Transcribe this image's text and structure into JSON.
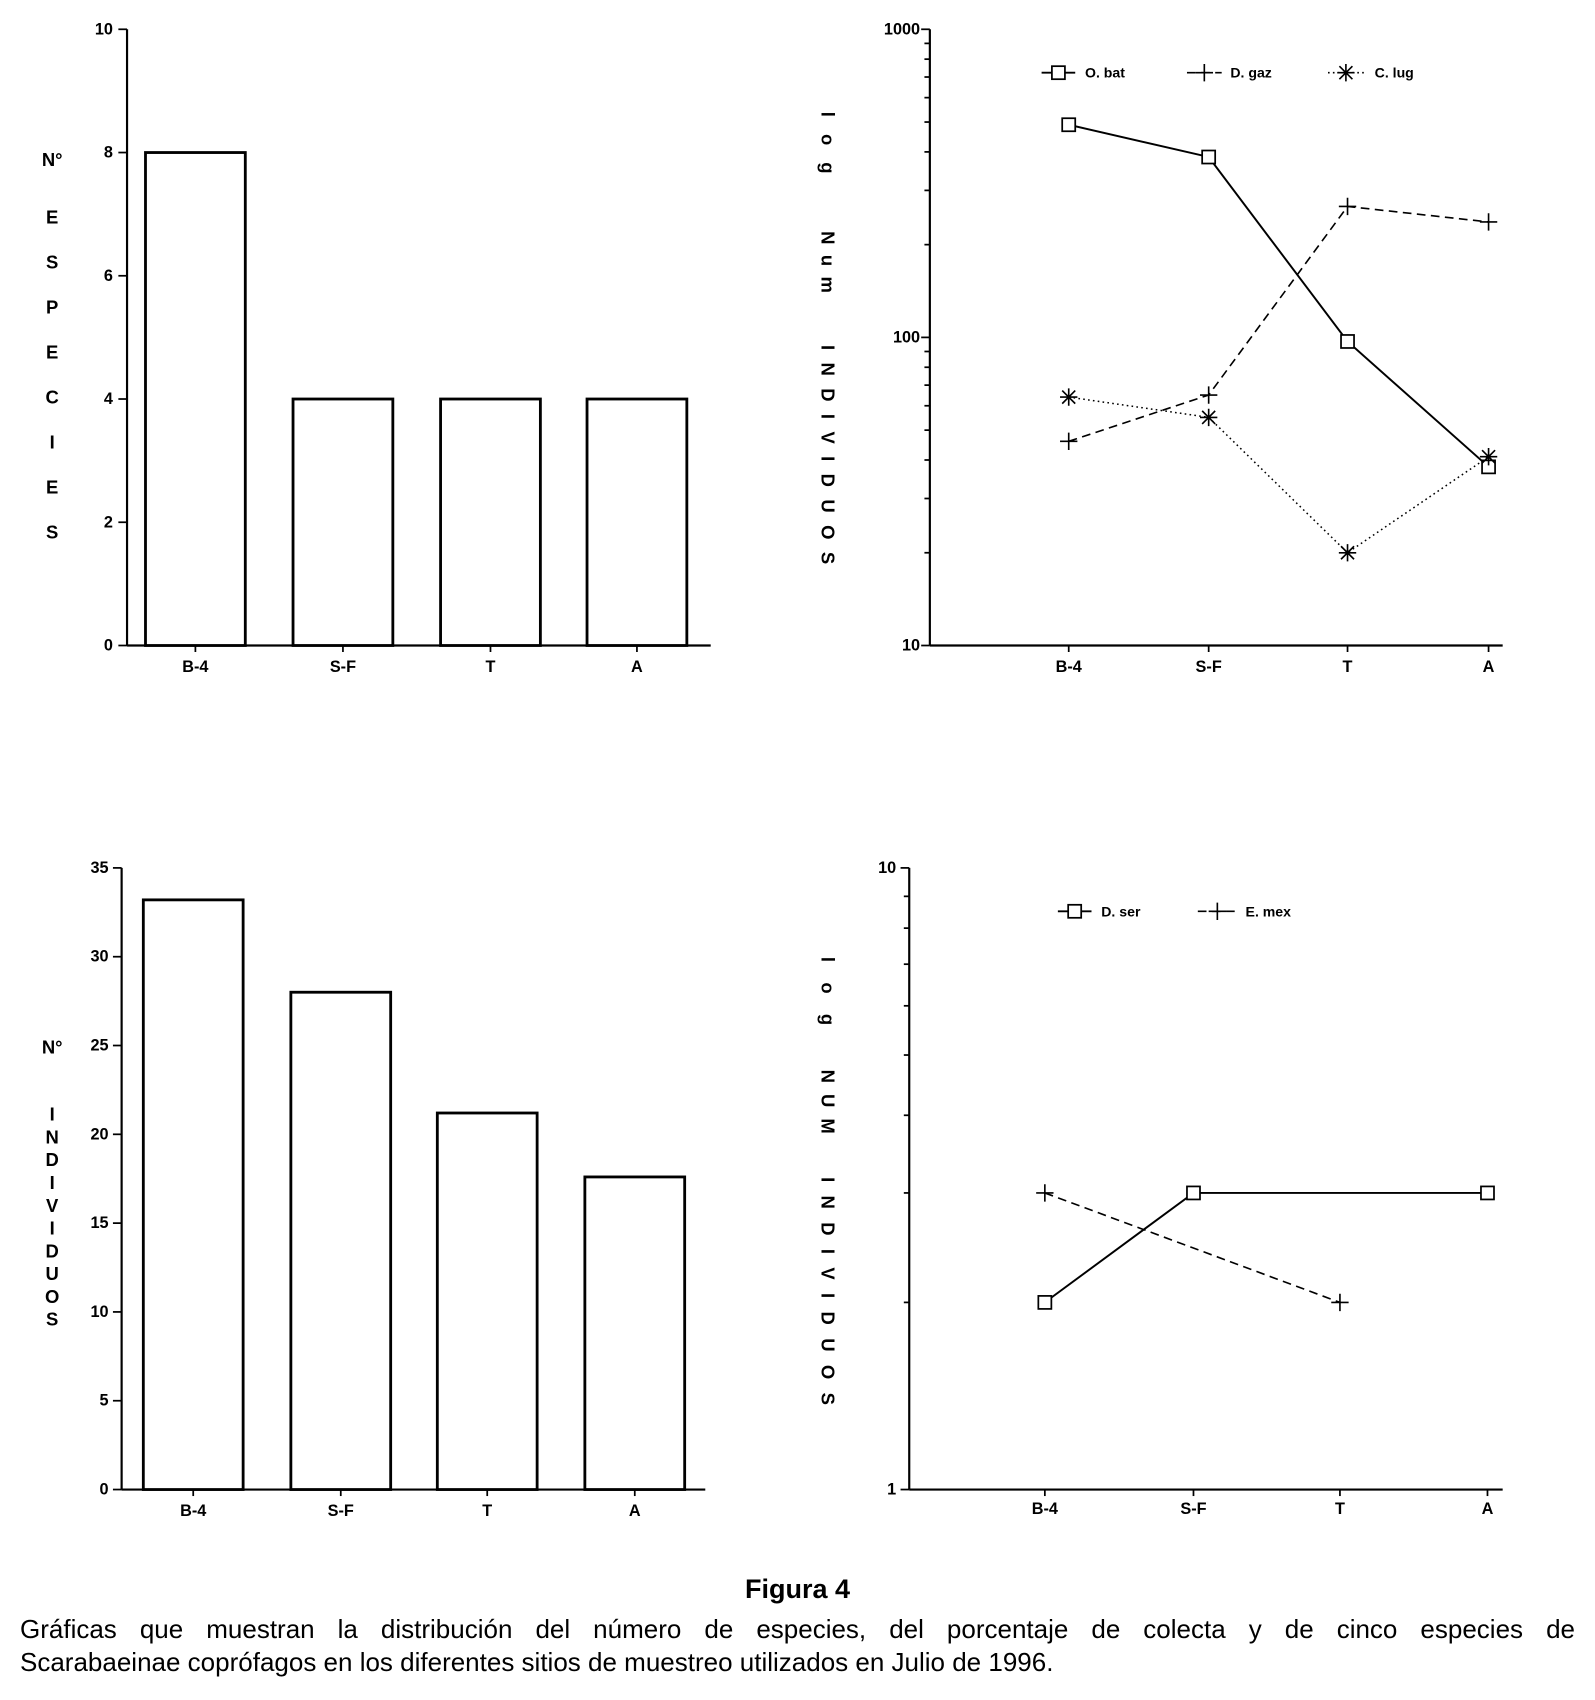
{
  "figure": {
    "title": "Figura 4",
    "caption_lines": [
      "Gráficas que muestran la distribución del número de especies, del porcentaje de colecta y de cinco especies de",
      "Scarabaeinae coprófagos en los diferentes sitios de muestreo utilizados en Julio de 1996."
    ]
  },
  "chart_data": [
    {
      "type": "bar",
      "categories": [
        "B-4",
        "S-F",
        "T",
        "A"
      ],
      "values": [
        8,
        4,
        4,
        4
      ],
      "ylabel": [
        "N°",
        "ESPECIES"
      ],
      "ylim": [
        0,
        10
      ],
      "yticks": [
        0,
        2,
        4,
        6,
        8,
        10
      ],
      "grid": false
    },
    {
      "type": "line",
      "categories": [
        "B-4",
        "S-F",
        "T",
        "A"
      ],
      "yscale": "log",
      "ylim": [
        10,
        1000
      ],
      "yticks": [
        10,
        100,
        1000
      ],
      "ylabel": [
        "log",
        "Num",
        "INDIVIDUOS"
      ],
      "grid": false,
      "series": [
        {
          "name": "O. bat",
          "marker": "square-icon",
          "values": [
            490,
            385,
            97,
            38
          ]
        },
        {
          "name": "D. gaz",
          "marker": "plus-icon",
          "values": [
            46,
            65,
            266,
            237
          ]
        },
        {
          "name": "C. lug",
          "marker": "asterisk-icon",
          "values": [
            64,
            55,
            20,
            41
          ]
        }
      ]
    },
    {
      "type": "bar",
      "categories": [
        "B-4",
        "S-F",
        "T",
        "A"
      ],
      "values": [
        33.2,
        28.0,
        21.2,
        17.6
      ],
      "ylabel": [
        "N°",
        "INDIVIDUOS"
      ],
      "ylim": [
        0,
        35
      ],
      "yticks": [
        0,
        5,
        10,
        15,
        20,
        25,
        30,
        35
      ],
      "grid": false
    },
    {
      "type": "line",
      "categories": [
        "B-4",
        "S-F",
        "T",
        "A"
      ],
      "yscale": "log",
      "ylim": [
        1,
        10
      ],
      "yticks": [
        1,
        10
      ],
      "ylabel": [
        "log",
        "NUM",
        "INDIVIDUOS"
      ],
      "grid": false,
      "series": [
        {
          "name": "D. ser",
          "marker": "square-icon",
          "values": [
            2,
            3,
            null,
            3
          ]
        },
        {
          "name": "E. mex",
          "marker": "plus-icon",
          "values": [
            3,
            null,
            2,
            null
          ]
        }
      ]
    }
  ]
}
